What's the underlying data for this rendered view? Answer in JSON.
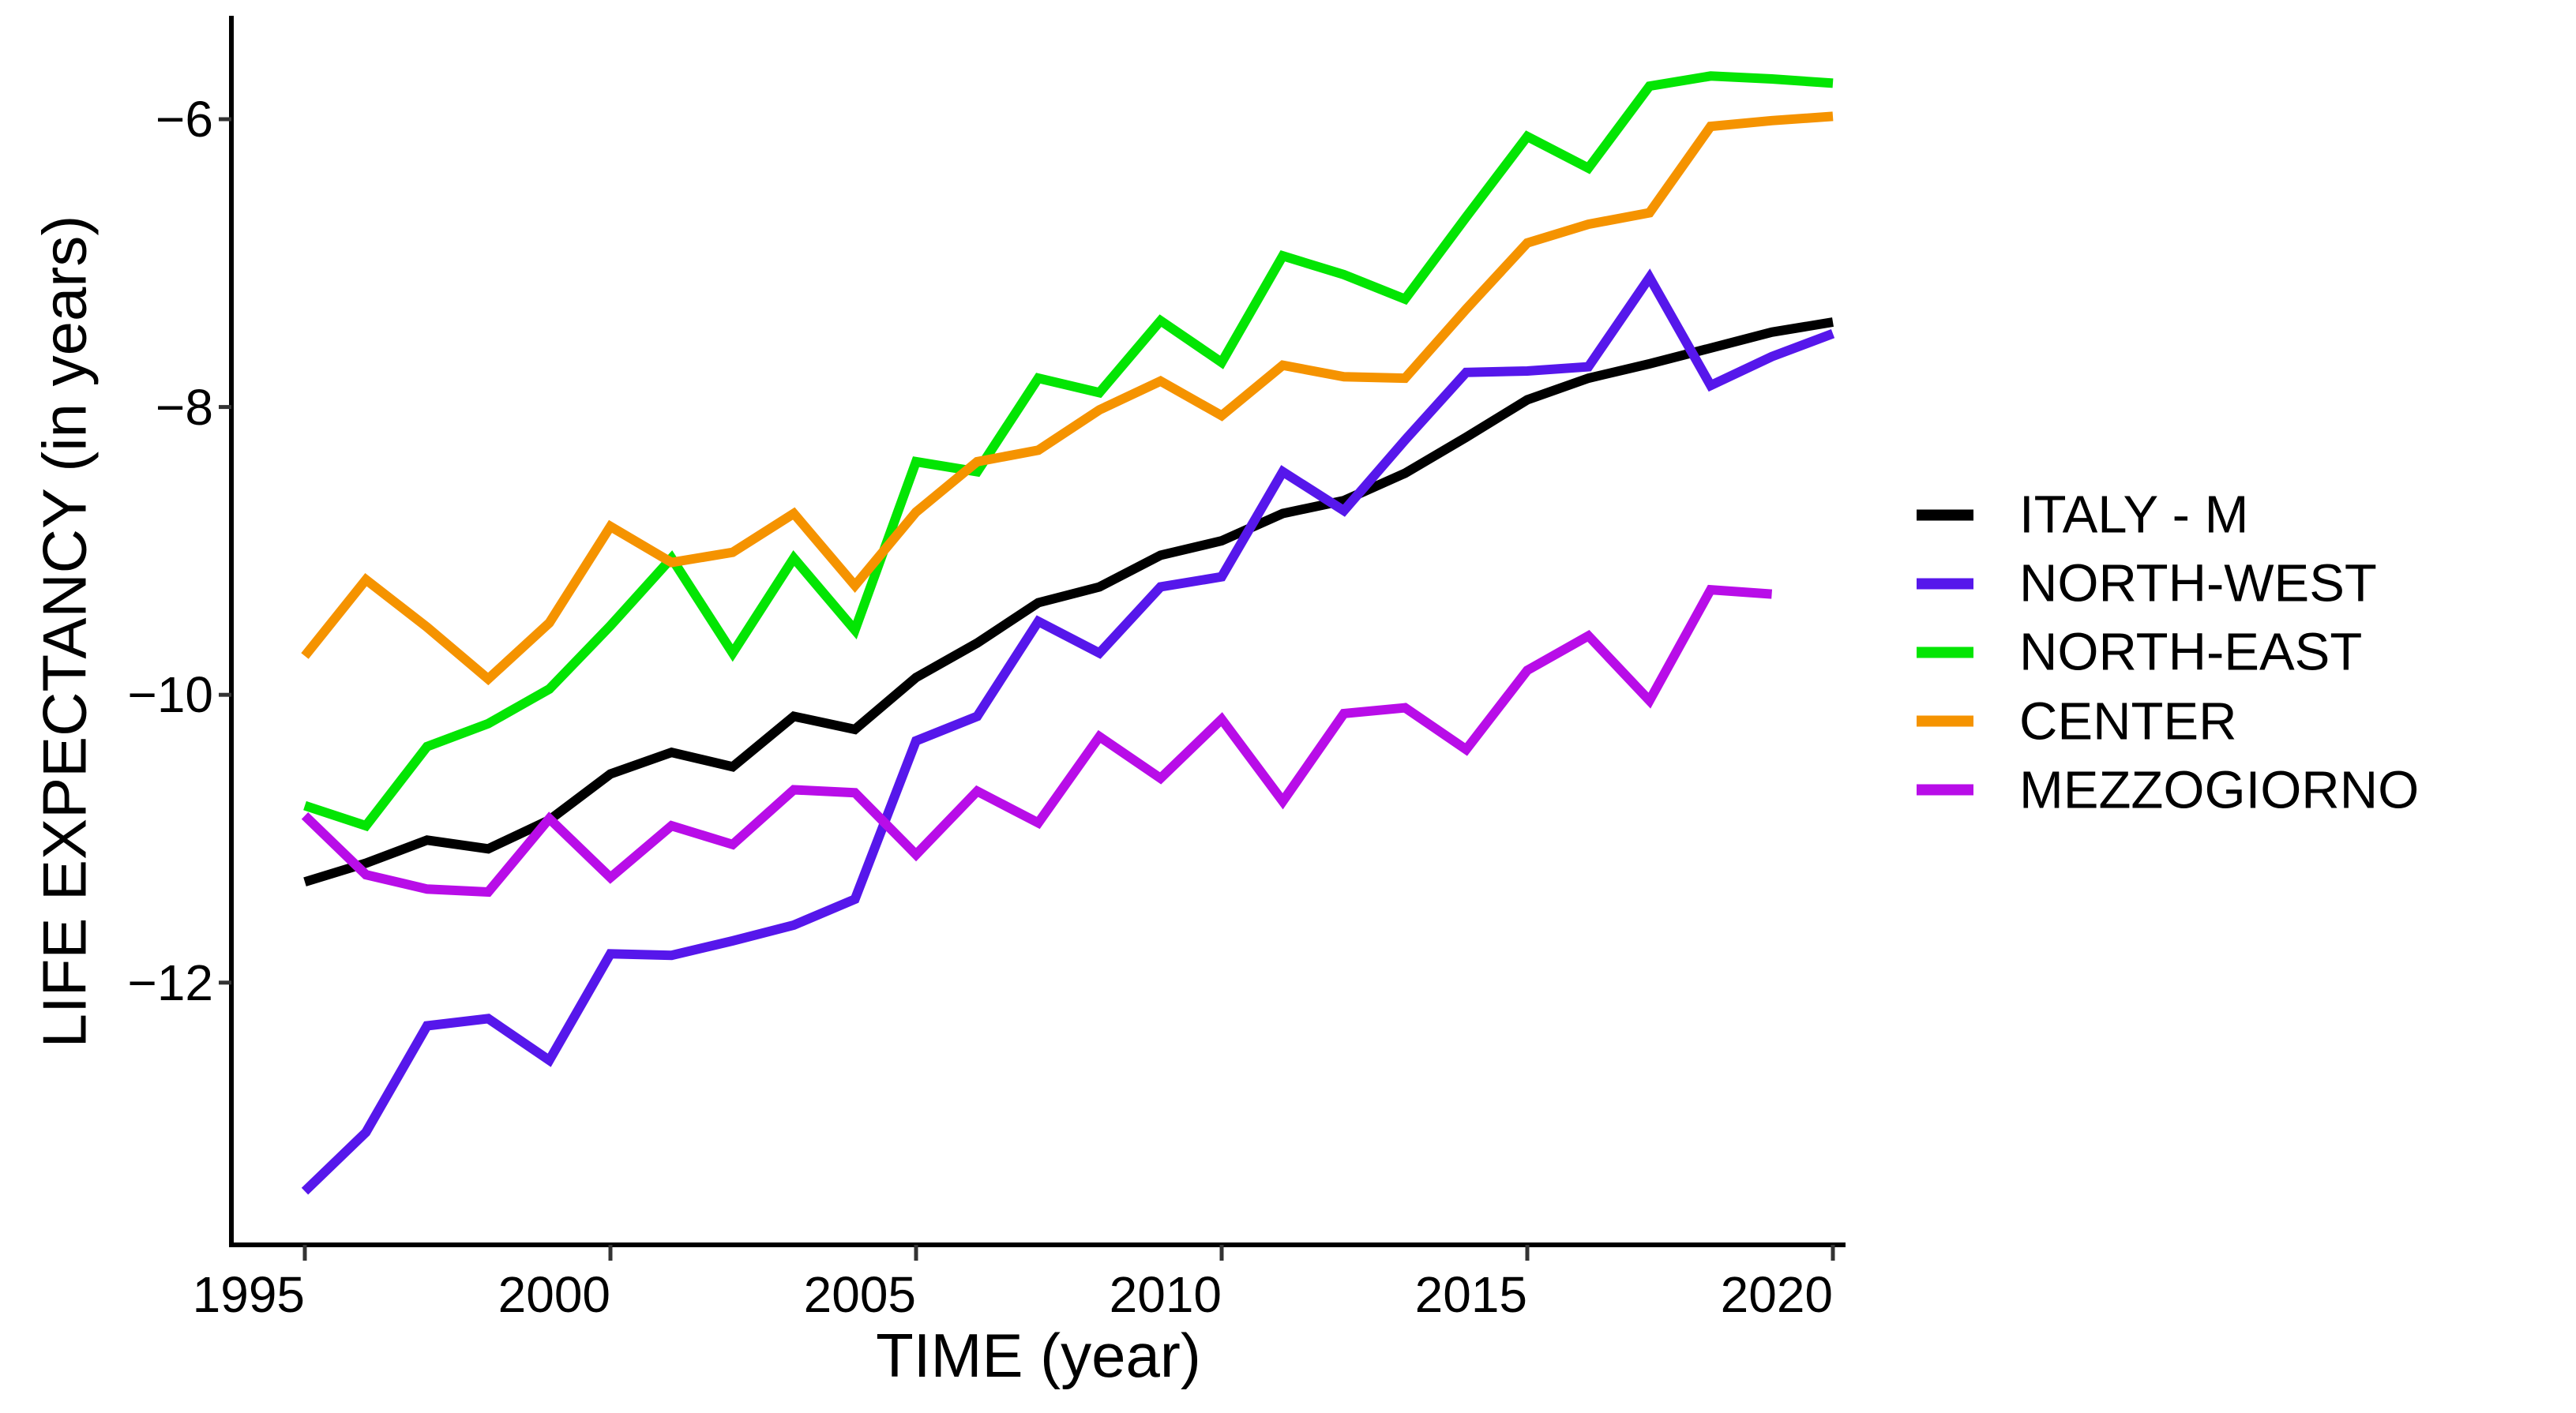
{
  "figure": {
    "title": "",
    "y_axis": {
      "label": "LIFE EXPECTANCY (in years)",
      "tick_labels": [
        "−6",
        "−8",
        "−10",
        "−12"
      ]
    },
    "x_axis": {
      "label": "TIME (year)",
      "tick_labels": [
        "1995",
        "2000",
        "2005",
        "2010",
        "2015",
        "2020"
      ]
    }
  },
  "legend": {
    "position": "right",
    "items": [
      {
        "label": "ITALY - M",
        "color": "#000000"
      },
      {
        "label": "NORTH-WEST",
        "color": "#5617EB"
      },
      {
        "label": "NORTH-EAST",
        "color": "#03E503"
      },
      {
        "label": "CENTER",
        "color": "#F59300"
      },
      {
        "label": "MEZZOGIORNO",
        "color": "#B80DE8"
      }
    ]
  },
  "chart_data": {
    "type": "line",
    "title": "",
    "xlabel": "TIME (year)",
    "ylabel": "LIFE EXPECTANCY (in years)",
    "x": [
      1995,
      1996,
      1997,
      1998,
      1999,
      2000,
      2001,
      2002,
      2003,
      2004,
      2005,
      2006,
      2007,
      2008,
      2009,
      2010,
      2011,
      2012,
      2013,
      2014,
      2015,
      2016,
      2017,
      2018,
      2019,
      2020
    ],
    "xticks": [
      1995,
      2000,
      2005,
      2010,
      2015,
      2020
    ],
    "yticks": [
      -6,
      -8,
      -10,
      -12
    ],
    "xlim": [
      1993.8,
      2020.2
    ],
    "ylim": [
      -13.82,
      -5.28
    ],
    "grid": false,
    "legend_position": "right",
    "series": [
      {
        "name": "ITALY - M",
        "color": "#000000",
        "values": [
          -11.3,
          -11.17,
          -11.01,
          -11.07,
          -10.87,
          -10.55,
          -10.4,
          -10.5,
          -10.15,
          -10.24,
          -9.88,
          -9.64,
          -9.36,
          -9.25,
          -9.03,
          -8.93,
          -8.74,
          -8.65,
          -8.46,
          -8.21,
          -7.95,
          -7.8,
          -7.7,
          -7.59,
          -7.48,
          -7.41
        ]
      },
      {
        "name": "NORTH-WEST",
        "color": "#5617EB",
        "values": [
          -13.45,
          -13.04,
          -12.3,
          -12.25,
          -12.54,
          -11.8,
          -11.81,
          -11.71,
          -11.6,
          -11.42,
          -10.32,
          -10.15,
          -9.49,
          -9.71,
          -9.25,
          -9.18,
          -8.45,
          -8.72,
          -8.23,
          -7.76,
          -7.75,
          -7.72,
          -7.1,
          -7.85,
          -7.65,
          -7.49
        ]
      },
      {
        "name": "NORTH-EAST",
        "color": "#03E503",
        "values": [
          -10.77,
          -10.91,
          -10.36,
          -10.2,
          -9.96,
          -9.52,
          -9.05,
          -9.71,
          -9.05,
          -9.55,
          -8.38,
          -8.45,
          -7.8,
          -7.9,
          -7.4,
          -7.69,
          -6.95,
          -7.08,
          -7.25,
          -6.68,
          -6.12,
          -6.34,
          -5.77,
          -5.7,
          -5.72,
          -5.75
        ]
      },
      {
        "name": "CENTER",
        "color": "#F59300",
        "values": [
          -9.73,
          -9.2,
          -9.53,
          -9.89,
          -9.5,
          -8.83,
          -9.08,
          -9.01,
          -8.74,
          -9.24,
          -8.73,
          -8.38,
          -8.3,
          -8.02,
          -7.82,
          -8.06,
          -7.71,
          -7.79,
          -7.8,
          -7.32,
          -6.86,
          -6.73,
          -6.65,
          -6.05,
          -6.01,
          -5.98
        ]
      },
      {
        "name": "MEZZOGIORNO",
        "color": "#B80DE8",
        "values": [
          -10.84,
          -11.25,
          -11.35,
          -11.37,
          -10.86,
          -11.27,
          -10.91,
          -11.04,
          -10.66,
          -10.68,
          -11.11,
          -10.67,
          -10.89,
          -10.29,
          -10.58,
          -10.17,
          -10.74,
          -10.13,
          -10.09,
          -10.38,
          -9.83,
          -9.59,
          -10.04,
          -9.27,
          -9.3,
          null
        ]
      }
    ]
  }
}
